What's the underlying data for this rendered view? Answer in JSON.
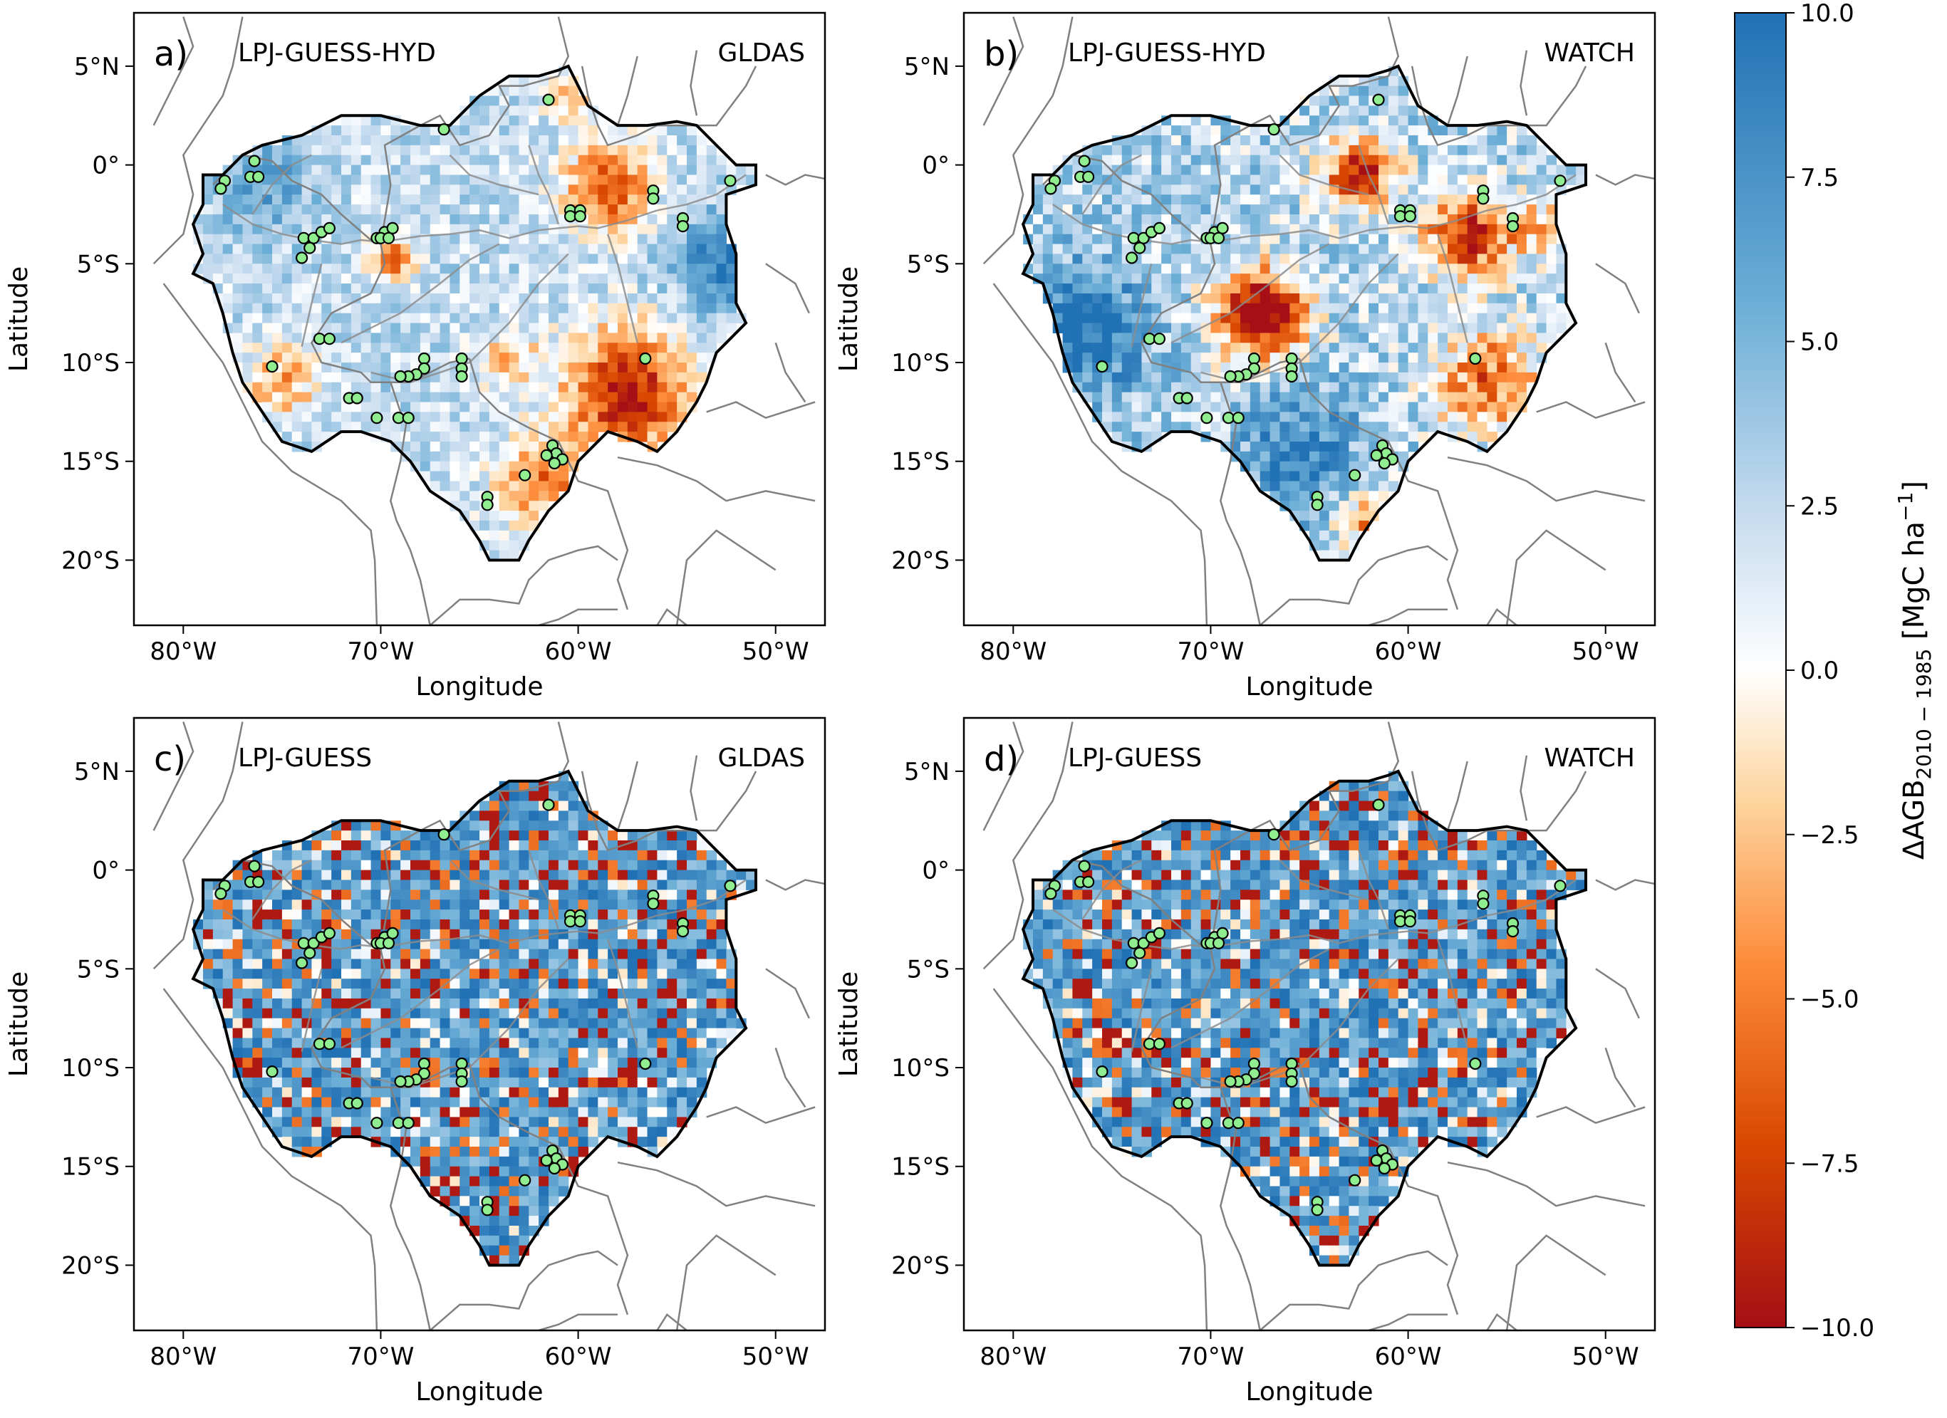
{
  "figure": {
    "panels": [
      {
        "letter": "a)",
        "model": "LPJ-GUESS-HYD",
        "forcing": "GLDAS",
        "pattern": "hyd_gldas"
      },
      {
        "letter": "b)",
        "model": "LPJ-GUESS-HYD",
        "forcing": "WATCH",
        "pattern": "hyd_watch"
      },
      {
        "letter": "c)",
        "model": "LPJ-GUESS",
        "forcing": "GLDAS",
        "pattern": "noise"
      },
      {
        "letter": "d)",
        "model": "LPJ-GUESS",
        "forcing": "WATCH",
        "pattern": "noise"
      }
    ],
    "axes": {
      "xlabel": "Longitude",
      "ylabel": "Latitude",
      "xticks": [
        {
          "value": -80,
          "label": "80°W"
        },
        {
          "value": -70,
          "label": "70°W"
        },
        {
          "value": -60,
          "label": "60°W"
        },
        {
          "value": -50,
          "label": "50°W"
        }
      ],
      "yticks": [
        {
          "value": 5,
          "label": "5°N"
        },
        {
          "value": 0,
          "label": "0°"
        },
        {
          "value": -5,
          "label": "5°S"
        },
        {
          "value": -10,
          "label": "10°S"
        },
        {
          "value": -15,
          "label": "15°S"
        },
        {
          "value": -20,
          "label": "20°S"
        }
      ],
      "lon_range": [
        -82.5,
        -47.5
      ],
      "lat_range": [
        -23.3,
        7.7
      ]
    },
    "colorbar": {
      "label_main": "ΔAGB",
      "label_sub": "2010 − 1985",
      "label_units": " [MgC ha",
      "label_sup": "−1",
      "label_close": "]",
      "range": [
        -10,
        10
      ],
      "ticks": [
        {
          "value": 10,
          "label": "10.0"
        },
        {
          "value": 7.5,
          "label": "7.5"
        },
        {
          "value": 5,
          "label": "5.0"
        },
        {
          "value": 2.5,
          "label": "2.5"
        },
        {
          "value": 0,
          "label": "0.0"
        },
        {
          "value": -2.5,
          "label": "−2.5"
        },
        {
          "value": -5,
          "label": "−5.0"
        },
        {
          "value": -7.5,
          "label": "−7.5"
        },
        {
          "value": -10,
          "label": "−10.0"
        }
      ],
      "colormap": "RdYlBu-like (dark red → orange → white → blue)",
      "colors": [
        "#a50f15",
        "#d94801",
        "#fd8d3c",
        "#fdd49e",
        "#ffffff",
        "#c6dbef",
        "#6baed6",
        "#2171b5"
      ]
    },
    "basin_outline": [
      [
        -78,
        -0.5
      ],
      [
        -77,
        0.5
      ],
      [
        -76,
        1
      ],
      [
        -74,
        1.5
      ],
      [
        -72,
        2.5
      ],
      [
        -70,
        2.5
      ],
      [
        -68,
        2
      ],
      [
        -66.5,
        2
      ],
      [
        -65,
        3.5
      ],
      [
        -63.5,
        4.5
      ],
      [
        -62,
        4.5
      ],
      [
        -61,
        4.8
      ],
      [
        -60.5,
        5
      ],
      [
        -60,
        4
      ],
      [
        -59.5,
        3
      ],
      [
        -58,
        2
      ],
      [
        -56.5,
        2
      ],
      [
        -55,
        2.2
      ],
      [
        -54,
        2
      ],
      [
        -53,
        1
      ],
      [
        -52,
        0
      ],
      [
        -51,
        0
      ],
      [
        -51,
        -1
      ],
      [
        -52.5,
        -1.5
      ],
      [
        -52.5,
        -3
      ],
      [
        -52,
        -4.5
      ],
      [
        -52,
        -7
      ],
      [
        -51.5,
        -8
      ],
      [
        -53,
        -9.5
      ],
      [
        -53.5,
        -11
      ],
      [
        -54,
        -12
      ],
      [
        -55,
        -13.5
      ],
      [
        -56,
        -14.5
      ],
      [
        -57,
        -14
      ],
      [
        -58.5,
        -13.5
      ],
      [
        -60,
        -15
      ],
      [
        -60.5,
        -16.5
      ],
      [
        -61.5,
        -17.5
      ],
      [
        -62.5,
        -19
      ],
      [
        -63,
        -20
      ],
      [
        -64.5,
        -20
      ],
      [
        -65,
        -19
      ],
      [
        -66,
        -17.5
      ],
      [
        -67.5,
        -16.5
      ],
      [
        -68.5,
        -15
      ],
      [
        -69.5,
        -14
      ],
      [
        -71,
        -13.5
      ],
      [
        -72,
        -13.5
      ],
      [
        -73.5,
        -14.5
      ],
      [
        -75,
        -14
      ],
      [
        -76,
        -12.5
      ],
      [
        -77,
        -11
      ],
      [
        -77.5,
        -9.5
      ],
      [
        -78,
        -7.5
      ],
      [
        -78.5,
        -6
      ],
      [
        -79.5,
        -5.5
      ],
      [
        -79,
        -4.5
      ],
      [
        -79.5,
        -3
      ],
      [
        -79,
        -2
      ],
      [
        -79,
        -0.5
      ]
    ],
    "borders": [
      [
        [
          -81.5,
          -5
        ],
        [
          -80,
          -3.5
        ],
        [
          -79.5,
          -1.5
        ],
        [
          -80,
          0.5
        ],
        [
          -79,
          2
        ],
        [
          -78,
          3.5
        ],
        [
          -77.5,
          5
        ],
        [
          -77,
          7.5
        ]
      ],
      [
        [
          -81,
          -6
        ],
        [
          -79.5,
          -8
        ],
        [
          -78,
          -10
        ],
        [
          -77,
          -12
        ],
        [
          -76,
          -14
        ],
        [
          -74.5,
          -15.5
        ],
        [
          -72,
          -17
        ],
        [
          -70.5,
          -18.5
        ],
        [
          -70.3,
          -20
        ],
        [
          -70.2,
          -23.3
        ]
      ],
      [
        [
          -78.5,
          -1
        ],
        [
          -77,
          0.5
        ],
        [
          -75.5,
          0.2
        ],
        [
          -74.5,
          -0.8
        ],
        [
          -73,
          -1.5
        ],
        [
          -72,
          -2.5
        ],
        [
          -70.5,
          -3.8
        ],
        [
          -70,
          -4
        ],
        [
          -69.8,
          -5
        ],
        [
          -70.5,
          -6.5
        ],
        [
          -72.5,
          -7.5
        ],
        [
          -73.5,
          -9
        ],
        [
          -73,
          -10
        ],
        [
          -71,
          -10.5
        ],
        [
          -70.5,
          -11
        ],
        [
          -69.5,
          -11
        ],
        [
          -69,
          -12.5
        ],
        [
          -68.7,
          -13
        ],
        [
          -69,
          -15
        ],
        [
          -69.5,
          -17
        ],
        [
          -69.2,
          -18
        ],
        [
          -68.5,
          -19.5
        ],
        [
          -68,
          -21
        ],
        [
          -67.5,
          -23.3
        ]
      ],
      [
        [
          -70,
          -4
        ],
        [
          -69.5,
          -1
        ],
        [
          -69.8,
          1
        ],
        [
          -68,
          2
        ],
        [
          -67,
          2.5
        ],
        [
          -66,
          1
        ],
        [
          -64.5,
          1.5
        ],
        [
          -63.5,
          3
        ],
        [
          -64,
          4
        ],
        [
          -62.8,
          4
        ],
        [
          -61,
          4.5
        ],
        [
          -60.5,
          5.5
        ],
        [
          -61,
          7.5
        ]
      ],
      [
        [
          -59.8,
          5
        ],
        [
          -59.5,
          3.5
        ],
        [
          -59,
          2
        ],
        [
          -58.5,
          1
        ],
        [
          -57,
          1.5
        ],
        [
          -56,
          2
        ],
        [
          -55,
          2
        ],
        [
          -54,
          2
        ],
        [
          -53,
          2
        ],
        [
          -51.5,
          4
        ],
        [
          -51,
          5
        ]
      ],
      [
        [
          -57,
          5.5
        ],
        [
          -57.5,
          3.5
        ],
        [
          -58,
          2
        ]
      ],
      [
        [
          -54,
          5.8
        ],
        [
          -54.3,
          4
        ],
        [
          -54,
          2.5
        ]
      ],
      [
        [
          -65.5,
          -9.8
        ],
        [
          -66.5,
          -10
        ],
        [
          -67.5,
          -10.5
        ],
        [
          -68.5,
          -11
        ],
        [
          -69.5,
          -11
        ]
      ],
      [
        [
          -65.5,
          -9.8
        ],
        [
          -65,
          -11.5
        ],
        [
          -64,
          -12.5
        ],
        [
          -62.5,
          -13.3
        ],
        [
          -61,
          -14
        ],
        [
          -60.5,
          -15
        ],
        [
          -60,
          -16
        ],
        [
          -58.5,
          -16.5
        ],
        [
          -58,
          -18
        ],
        [
          -57.5,
          -19.5
        ],
        [
          -58,
          -21
        ],
        [
          -57.5,
          -22.5
        ]
      ],
      [
        [
          -67.5,
          -23.3
        ],
        [
          -66,
          -22
        ],
        [
          -64.5,
          -22
        ],
        [
          -63,
          -22.2
        ],
        [
          -62.5,
          -21
        ],
        [
          -61.5,
          -20
        ],
        [
          -60,
          -19.5
        ],
        [
          -59,
          -19.3
        ],
        [
          -58,
          -20
        ]
      ],
      [
        [
          -62,
          -23.3
        ],
        [
          -61,
          -23
        ],
        [
          -60,
          -22.5
        ],
        [
          -58,
          -22.5
        ]
      ],
      [
        [
          -56,
          -23.3
        ],
        [
          -55.5,
          -22.5
        ],
        [
          -54.5,
          -23.3
        ]
      ],
      [
        [
          -55,
          -23.3
        ],
        [
          -54.5,
          -20
        ],
        [
          -53,
          -18.5
        ],
        [
          -51.5,
          -19.5
        ],
        [
          -50,
          -20.5
        ]
      ],
      [
        [
          -58,
          -14.8
        ],
        [
          -56,
          -15.2
        ],
        [
          -54,
          -16
        ],
        [
          -52.5,
          -17
        ],
        [
          -50.5,
          -16.5
        ],
        [
          -48,
          -17
        ]
      ],
      [
        [
          -53.5,
          -12.5
        ],
        [
          -52,
          -12
        ],
        [
          -50.5,
          -12.8
        ],
        [
          -48,
          -12
        ]
      ],
      [
        [
          -50.5,
          -0.5
        ],
        [
          -49.5,
          -1
        ],
        [
          -48.5,
          -0.5
        ],
        [
          -47.5,
          -0.7
        ]
      ],
      [
        [
          -50.5,
          -5
        ],
        [
          -49,
          -6
        ],
        [
          -48.3,
          -7.5
        ]
      ],
      [
        [
          -50,
          -9
        ],
        [
          -49.5,
          -10.5
        ],
        [
          -48.5,
          -12
        ]
      ],
      [
        [
          -81.5,
          2
        ],
        [
          -80.5,
          4
        ],
        [
          -79.5,
          6
        ],
        [
          -80,
          7.5
        ]
      ]
    ],
    "rivers": [
      [
        [
          -78,
          -2
        ],
        [
          -76.5,
          -3
        ],
        [
          -75,
          -3.5
        ],
        [
          -73.5,
          -3.8
        ],
        [
          -72,
          -4
        ],
        [
          -71,
          -3.8
        ],
        [
          -70,
          -3.9
        ],
        [
          -68,
          -3.6
        ],
        [
          -66.5,
          -3.5
        ],
        [
          -65,
          -3.3
        ],
        [
          -63.5,
          -3.7
        ],
        [
          -62,
          -3.3
        ],
        [
          -61,
          -3.2
        ],
        [
          -60,
          -3.1
        ],
        [
          -59,
          -3.2
        ],
        [
          -57.5,
          -2.8
        ],
        [
          -56,
          -2.3
        ],
        [
          -54.5,
          -2
        ],
        [
          -53,
          -1.5
        ],
        [
          -51.5,
          -0.5
        ]
      ],
      [
        [
          -76.5,
          -2.5
        ],
        [
          -75.5,
          -1
        ],
        [
          -74.5,
          0
        ],
        [
          -73.5,
          0.5
        ]
      ],
      [
        [
          -73,
          -5
        ],
        [
          -73.5,
          -7
        ],
        [
          -74,
          -9.2
        ]
      ],
      [
        [
          -72,
          -9
        ],
        [
          -71,
          -8.5
        ],
        [
          -69,
          -7.5
        ],
        [
          -67,
          -6
        ],
        [
          -65.5,
          -4.8
        ],
        [
          -64,
          -4
        ]
      ],
      [
        [
          -70.5,
          -10.5
        ],
        [
          -68.5,
          -11
        ],
        [
          -67,
          -10.5
        ],
        [
          -65.5,
          -10
        ],
        [
          -64.5,
          -9
        ],
        [
          -63.5,
          -8
        ],
        [
          -62,
          -6
        ],
        [
          -60.5,
          -4.5
        ]
      ],
      [
        [
          -62.5,
          1
        ],
        [
          -62,
          -0.5
        ],
        [
          -61.5,
          -1.5
        ],
        [
          -61,
          -3
        ]
      ],
      [
        [
          -57,
          -9
        ],
        [
          -57.5,
          -7
        ],
        [
          -58,
          -5
        ],
        [
          -58.5,
          -3.5
        ]
      ],
      [
        [
          -66.5,
          0.5
        ],
        [
          -65.5,
          -0.5
        ],
        [
          -64,
          -1
        ],
        [
          -62,
          -1.5
        ]
      ]
    ],
    "sites": [
      [
        -76.4,
        0.2
      ],
      [
        -76.6,
        -0.6
      ],
      [
        -76.2,
        -0.6
      ],
      [
        -77.9,
        -0.8
      ],
      [
        -78.1,
        -1.2
      ],
      [
        -73.9,
        -3.7
      ],
      [
        -73.4,
        -3.7
      ],
      [
        -73,
        -3.4
      ],
      [
        -72.6,
        -3.2
      ],
      [
        -73.6,
        -4.2
      ],
      [
        -74,
        -4.7
      ],
      [
        -70.2,
        -3.7
      ],
      [
        -69.8,
        -3.4
      ],
      [
        -69.4,
        -3.2
      ],
      [
        -70,
        -3.7
      ],
      [
        -69.6,
        -3.7
      ],
      [
        -73.1,
        -8.8
      ],
      [
        -72.6,
        -8.8
      ],
      [
        -75.5,
        -10.2
      ],
      [
        -71.6,
        -11.8
      ],
      [
        -71.2,
        -11.8
      ],
      [
        -67.8,
        -9.8
      ],
      [
        -67.8,
        -10.3
      ],
      [
        -68.2,
        -10.6
      ],
      [
        -68.6,
        -10.7
      ],
      [
        -69,
        -10.7
      ],
      [
        -65.9,
        -9.8
      ],
      [
        -65.9,
        -10.3
      ],
      [
        -65.9,
        -10.7
      ],
      [
        -70.2,
        -12.8
      ],
      [
        -69.1,
        -12.8
      ],
      [
        -68.6,
        -12.8
      ],
      [
        -61.5,
        3.3
      ],
      [
        -66.8,
        1.8
      ],
      [
        -60.4,
        -2.3
      ],
      [
        -59.9,
        -2.3
      ],
      [
        -60.4,
        -2.6
      ],
      [
        -59.9,
        -2.6
      ],
      [
        -56.2,
        -1.3
      ],
      [
        -56.2,
        -1.7
      ],
      [
        -54.7,
        -2.7
      ],
      [
        -54.7,
        -3.1
      ],
      [
        -52.3,
        -0.8
      ],
      [
        -56.6,
        -9.8
      ],
      [
        -61.3,
        -14.2
      ],
      [
        -61.1,
        -14.6
      ],
      [
        -61.6,
        -14.7
      ],
      [
        -60.8,
        -14.9
      ],
      [
        -61.2,
        -15.1
      ],
      [
        -62.7,
        -15.7
      ],
      [
        -64.6,
        -16.8
      ],
      [
        -64.6,
        -17.2
      ]
    ]
  }
}
